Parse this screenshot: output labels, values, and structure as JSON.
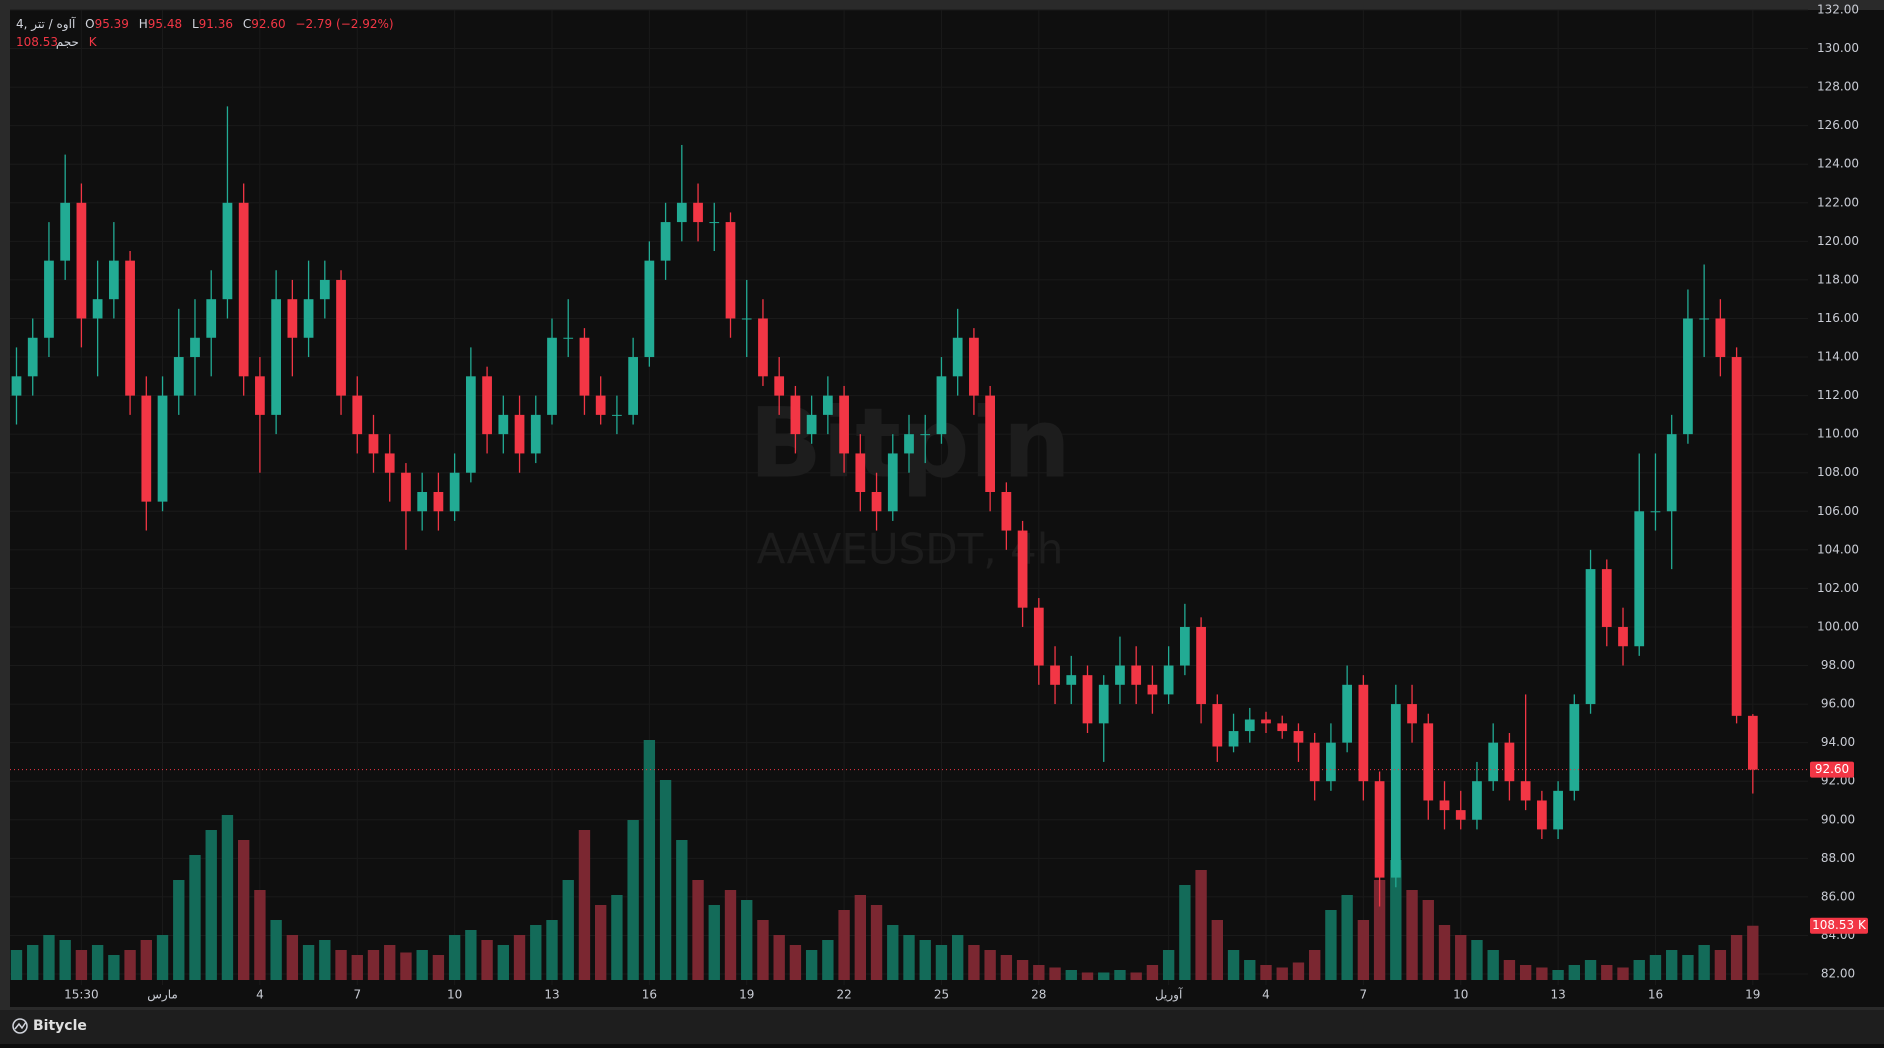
{
  "chart_data": {
    "type": "candlestick",
    "ui": {
      "symbol": "آاوه / تتر ,4",
      "o_key": "O",
      "o_val": "95.39",
      "h_key": "H",
      "h_val": "95.48",
      "l_key": "L",
      "l_val": "91.36",
      "c_key": "C",
      "c_val": "92.60",
      "change": "−2.79 (−2.92%)",
      "volume_key": "حجم",
      "volume_val": "108.53 K",
      "watermark": "Bitpin",
      "watermark_symbol": "AAVEUSDT, 4h",
      "last_price_label": "92.60",
      "last_volume_label": "108.53 K",
      "footer": "Bitycle"
    },
    "up_color": "#22ab94",
    "down_color": "#f23645",
    "volume_up_color": "#136b59",
    "volume_down_color": "#7b2731",
    "grid": true,
    "xlim": [
      -7.7,
      47.7
    ],
    "xticks": [
      {
        "value": -5.5,
        "label": "15:30"
      },
      {
        "value": -3,
        "label": "مارس"
      },
      {
        "value": 0,
        "label": "4"
      },
      {
        "value": 3,
        "label": "7"
      },
      {
        "value": 6,
        "label": "10"
      },
      {
        "value": 9,
        "label": "13"
      },
      {
        "value": 12,
        "label": "16"
      },
      {
        "value": 15,
        "label": "19"
      },
      {
        "value": 18,
        "label": "22"
      },
      {
        "value": 21,
        "label": "25"
      },
      {
        "value": 24,
        "label": "28"
      },
      {
        "value": 28,
        "label": "آوریل"
      },
      {
        "value": 31,
        "label": "4"
      },
      {
        "value": 34,
        "label": "7"
      },
      {
        "value": 37,
        "label": "10"
      },
      {
        "value": 40,
        "label": "13"
      },
      {
        "value": 43,
        "label": "16"
      },
      {
        "value": 46,
        "label": "19"
      }
    ],
    "ylim": [
      82,
      132
    ],
    "yticks": [
      {
        "value": 82,
        "label": "82.00"
      },
      {
        "value": 84,
        "label": "84.00"
      },
      {
        "value": 86,
        "label": "86.00"
      },
      {
        "value": 88,
        "label": "88.00"
      },
      {
        "value": 90,
        "label": "90.00"
      },
      {
        "value": 92,
        "label": "92.00"
      },
      {
        "value": 94,
        "label": "94.00"
      },
      {
        "value": 96,
        "label": "96.00"
      },
      {
        "value": 98,
        "label": "98.00"
      },
      {
        "value": 100,
        "label": "100.00"
      },
      {
        "value": 102,
        "label": "102.00"
      },
      {
        "value": 104,
        "label": "104.00"
      },
      {
        "value": 106,
        "label": "106.00"
      },
      {
        "value": 108,
        "label": "108.00"
      },
      {
        "value": 110,
        "label": "110.00"
      },
      {
        "value": 112,
        "label": "112.00"
      },
      {
        "value": 114,
        "label": "114.00"
      },
      {
        "value": 116,
        "label": "116.00"
      },
      {
        "value": 118,
        "label": "118.00"
      },
      {
        "value": 120,
        "label": "120.00"
      },
      {
        "value": 122,
        "label": "122.00"
      },
      {
        "value": 124,
        "label": "124.00"
      },
      {
        "value": 126,
        "label": "126.00"
      },
      {
        "value": 128,
        "label": "128.00"
      },
      {
        "value": 130,
        "label": "130.00"
      },
      {
        "value": 132,
        "label": "132.00"
      }
    ],
    "vlim": [
      0,
      500
    ],
    "x": [
      -7.5,
      -7,
      -6.5,
      -6,
      -5.5,
      -5,
      -4.5,
      -4,
      -3.5,
      -3,
      -2.5,
      -2,
      -1.5,
      -1,
      -0.5,
      0,
      0.5,
      1,
      1.5,
      2,
      2.5,
      3,
      3.5,
      4,
      4.5,
      5,
      5.5,
      6,
      6.5,
      7,
      7.5,
      8,
      8.5,
      9,
      9.5,
      10,
      10.5,
      11,
      11.5,
      12,
      12.5,
      13,
      13.5,
      14,
      14.5,
      15,
      15.5,
      16,
      16.5,
      17,
      17.5,
      18,
      18.5,
      19,
      19.5,
      20,
      20.5,
      21,
      21.5,
      22,
      22.5,
      23,
      23.5,
      24,
      24.5,
      25,
      25.5,
      26,
      26.5,
      27,
      27.5,
      28,
      28.5,
      29,
      29.5,
      30,
      30.5,
      31,
      31.5,
      32,
      32.5,
      33,
      33.5,
      34,
      34.5,
      35,
      35.5,
      36,
      36.5,
      37,
      37.5,
      38,
      38.5,
      39,
      39.5,
      40,
      40.5,
      41,
      41.5,
      42,
      42.5,
      43,
      43.5,
      44,
      44.5,
      45,
      45.5,
      46
    ],
    "ohlc": [
      [
        112,
        114.5,
        110.5,
        113
      ],
      [
        113,
        116,
        112,
        115
      ],
      [
        115,
        121,
        114,
        119
      ],
      [
        119,
        124.5,
        118,
        122
      ],
      [
        122,
        123,
        114.5,
        116
      ],
      [
        116,
        119,
        113,
        117
      ],
      [
        117,
        121,
        116,
        119
      ],
      [
        119,
        119.5,
        111,
        112
      ],
      [
        112,
        113,
        105,
        106.5
      ],
      [
        106.5,
        113,
        106,
        112
      ],
      [
        112,
        116.5,
        111,
        114
      ],
      [
        114,
        117,
        112,
        115
      ],
      [
        115,
        118.5,
        113,
        117
      ],
      [
        117,
        127,
        116,
        122
      ],
      [
        122,
        123,
        112,
        113
      ],
      [
        113,
        114,
        108,
        111
      ],
      [
        111,
        118.5,
        110,
        117
      ],
      [
        117,
        118,
        113,
        115
      ],
      [
        115,
        119,
        114,
        117
      ],
      [
        117,
        119,
        116,
        118
      ],
      [
        118,
        118.5,
        111,
        112
      ],
      [
        112,
        113,
        109,
        110
      ],
      [
        110,
        111,
        108,
        109
      ],
      [
        109,
        110,
        106.5,
        108
      ],
      [
        108,
        108.5,
        104,
        106
      ],
      [
        106,
        108,
        105,
        107
      ],
      [
        107,
        108,
        105,
        106
      ],
      [
        106,
        109,
        105.5,
        108
      ],
      [
        108,
        114.5,
        107.5,
        113
      ],
      [
        113,
        113.5,
        109,
        110
      ],
      [
        110,
        112,
        109,
        111
      ],
      [
        111,
        112,
        108,
        109
      ],
      [
        109,
        112,
        108.5,
        111
      ],
      [
        111,
        116,
        110.5,
        115
      ],
      [
        115,
        117,
        114,
        115
      ],
      [
        115,
        115.5,
        111,
        112
      ],
      [
        112,
        113,
        110.5,
        111
      ],
      [
        111,
        112,
        110,
        111
      ],
      [
        111,
        115,
        110.5,
        114
      ],
      [
        114,
        120,
        113.5,
        119
      ],
      [
        119,
        122,
        118,
        121
      ],
      [
        121,
        125,
        120,
        122
      ],
      [
        122,
        123,
        120,
        121
      ],
      [
        121,
        122,
        119.5,
        121
      ],
      [
        121,
        121.5,
        115,
        116
      ],
      [
        116,
        118,
        114,
        116
      ],
      [
        116,
        117,
        112.5,
        113
      ],
      [
        113,
        114,
        111,
        112
      ],
      [
        112,
        112.5,
        109,
        110
      ],
      [
        110,
        112,
        109.5,
        111
      ],
      [
        111,
        113,
        110,
        112
      ],
      [
        112,
        112.5,
        108,
        109
      ],
      [
        109,
        110,
        106,
        107
      ],
      [
        107,
        108,
        105,
        106
      ],
      [
        106,
        110,
        105.5,
        109
      ],
      [
        109,
        111,
        108,
        110
      ],
      [
        110,
        111,
        108.5,
        110
      ],
      [
        110,
        114,
        109.5,
        113
      ],
      [
        113,
        116.5,
        112,
        115
      ],
      [
        115,
        115.5,
        111,
        112
      ],
      [
        112,
        112.5,
        106,
        107
      ],
      [
        107,
        107.5,
        104,
        105
      ],
      [
        105,
        105.5,
        100,
        101
      ],
      [
        101,
        101.5,
        97,
        98
      ],
      [
        98,
        99,
        96,
        97
      ],
      [
        97,
        98.5,
        96,
        97.5
      ],
      [
        97.5,
        98,
        94.5,
        95
      ],
      [
        95,
        97.5,
        93,
        97
      ],
      [
        97,
        99.5,
        96,
        98
      ],
      [
        98,
        99,
        96,
        97
      ],
      [
        97,
        98,
        95.5,
        96.5
      ],
      [
        96.5,
        99,
        96,
        98
      ],
      [
        98,
        101.2,
        97.5,
        100
      ],
      [
        100,
        100.5,
        95,
        96
      ],
      [
        96,
        96.5,
        93,
        93.8
      ],
      [
        93.8,
        95.5,
        93.5,
        94.6
      ],
      [
        94.6,
        95.8,
        94,
        95.2
      ],
      [
        95.2,
        95.6,
        94.5,
        95
      ],
      [
        95,
        95.4,
        94.2,
        94.6
      ],
      [
        94.6,
        95,
        93,
        94
      ],
      [
        94,
        94.5,
        91,
        92
      ],
      [
        92,
        95,
        91.5,
        94
      ],
      [
        94,
        98,
        93.5,
        97
      ],
      [
        97,
        97.5,
        91,
        92
      ],
      [
        92,
        92.5,
        85.5,
        87
      ],
      [
        87,
        97,
        86.5,
        96
      ],
      [
        96,
        97,
        94,
        95
      ],
      [
        95,
        95.5,
        90,
        91
      ],
      [
        91,
        92,
        89.5,
        90.5
      ],
      [
        90.5,
        91.5,
        89.5,
        90
      ],
      [
        90,
        93,
        89.5,
        92
      ],
      [
        92,
        95,
        91.5,
        94
      ],
      [
        94,
        94.5,
        91,
        92
      ],
      [
        92,
        96.5,
        90.5,
        91
      ],
      [
        91,
        91.5,
        89,
        89.5
      ],
      [
        89.5,
        92,
        89,
        91.5
      ],
      [
        91.5,
        96.5,
        91,
        96
      ],
      [
        96,
        104,
        95.5,
        103
      ],
      [
        103,
        103.5,
        99,
        100
      ],
      [
        100,
        101,
        98,
        99
      ],
      [
        99,
        109,
        98.5,
        106
      ],
      [
        106,
        109,
        105,
        106
      ],
      [
        106,
        111,
        103,
        110
      ],
      [
        110,
        117.5,
        109.5,
        116
      ],
      [
        116,
        118.8,
        114,
        116
      ],
      [
        116,
        117,
        113,
        114
      ],
      [
        114,
        114.5,
        95,
        95.39
      ],
      [
        95.39,
        95.48,
        91.36,
        92.6
      ]
    ],
    "volume": [
      60,
      70,
      90,
      80,
      60,
      70,
      50,
      60,
      80,
      90,
      200,
      250,
      300,
      330,
      280,
      180,
      120,
      90,
      70,
      80,
      60,
      50,
      60,
      70,
      55,
      60,
      50,
      90,
      100,
      80,
      70,
      90,
      110,
      120,
      200,
      300,
      150,
      170,
      320,
      480,
      400,
      280,
      200,
      150,
      180,
      160,
      120,
      90,
      70,
      60,
      80,
      140,
      170,
      150,
      110,
      90,
      80,
      70,
      90,
      70,
      60,
      50,
      40,
      30,
      25,
      20,
      15,
      15,
      20,
      15,
      30,
      60,
      190,
      220,
      120,
      60,
      40,
      30,
      25,
      35,
      60,
      140,
      170,
      120,
      200,
      240,
      180,
      160,
      110,
      90,
      80,
      60,
      40,
      30,
      25,
      20,
      30,
      40,
      30,
      25,
      40,
      50,
      60,
      50,
      70,
      60,
      90,
      108.53
    ]
  }
}
